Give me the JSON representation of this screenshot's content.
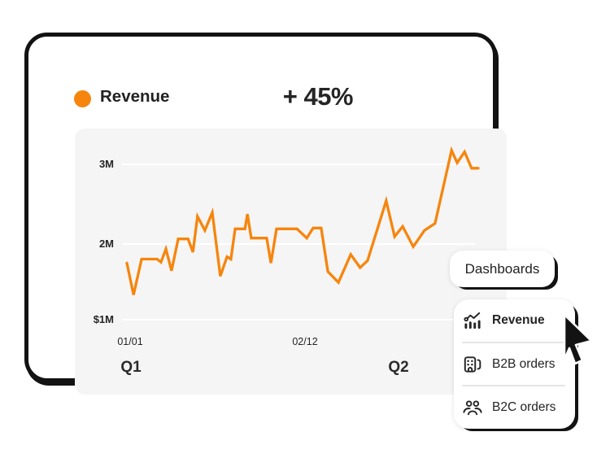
{
  "card": {
    "title": "Revenue",
    "delta": "+ 45%",
    "accent_color": "#F6850D"
  },
  "chart_data": {
    "type": "line",
    "title": "Revenue",
    "series_color": "#F6850D",
    "y_ticks": [
      "3M",
      "2M",
      "$1M"
    ],
    "y_tick_values": [
      3000000,
      2000000,
      1000000
    ],
    "x_ticks": [
      "01/01",
      "02/12"
    ],
    "quarter_labels": [
      "Q1",
      "Q2"
    ],
    "ylim": [
      1000000,
      3300000
    ],
    "grid": "horizontal-white-lines",
    "legend": "none",
    "points_format": "[x_fraction_along_axis, value_in_millions]",
    "points": [
      [
        0.0,
        1.73
      ],
      [
        0.019,
        1.32
      ],
      [
        0.042,
        1.78
      ],
      [
        0.086,
        1.78
      ],
      [
        0.097,
        1.74
      ],
      [
        0.111,
        1.91
      ],
      [
        0.127,
        1.63
      ],
      [
        0.146,
        2.04
      ],
      [
        0.174,
        2.04
      ],
      [
        0.188,
        1.87
      ],
      [
        0.201,
        2.33
      ],
      [
        0.222,
        2.15
      ],
      [
        0.243,
        2.38
      ],
      [
        0.266,
        1.56
      ],
      [
        0.285,
        1.81
      ],
      [
        0.296,
        1.78
      ],
      [
        0.308,
        2.17
      ],
      [
        0.336,
        2.17
      ],
      [
        0.343,
        2.36
      ],
      [
        0.354,
        2.05
      ],
      [
        0.398,
        2.05
      ],
      [
        0.41,
        1.73
      ],
      [
        0.426,
        2.17
      ],
      [
        0.484,
        2.17
      ],
      [
        0.512,
        2.05
      ],
      [
        0.53,
        2.18
      ],
      [
        0.553,
        2.18
      ],
      [
        0.572,
        1.62
      ],
      [
        0.602,
        1.48
      ],
      [
        0.637,
        1.84
      ],
      [
        0.664,
        1.67
      ],
      [
        0.685,
        1.76
      ],
      [
        0.738,
        2.53
      ],
      [
        0.762,
        2.07
      ],
      [
        0.785,
        2.2
      ],
      [
        0.815,
        1.94
      ],
      [
        0.847,
        2.15
      ],
      [
        0.877,
        2.24
      ],
      [
        0.924,
        3.18
      ],
      [
        0.94,
        3.02
      ],
      [
        0.961,
        3.16
      ],
      [
        0.981,
        2.95
      ],
      [
        1.0,
        2.95
      ]
    ]
  },
  "popup": {
    "dashboards_label": "Dashboards",
    "menu_items": [
      {
        "label": "Revenue",
        "icon": "bar-line-chart-icon",
        "selected": true
      },
      {
        "label": "B2B orders",
        "icon": "building-icon",
        "selected": false
      },
      {
        "label": "B2C orders",
        "icon": "people-group-icon",
        "selected": false
      }
    ]
  },
  "cursor": {
    "type": "arrow-pointer"
  }
}
